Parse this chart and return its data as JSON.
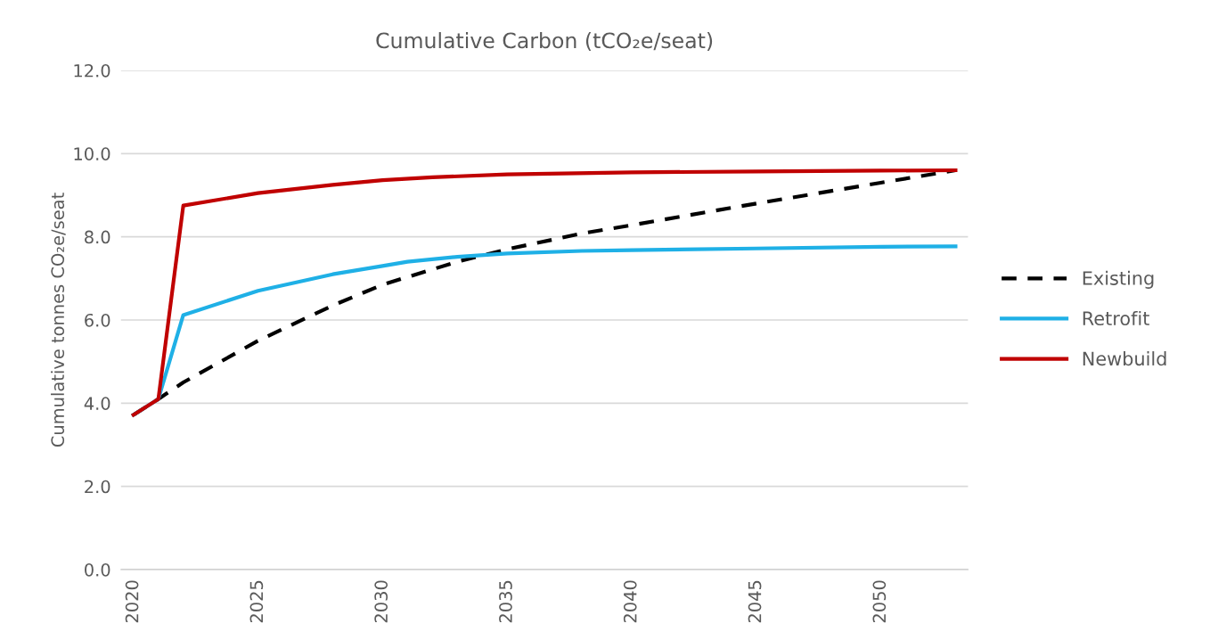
{
  "chart_data": {
    "type": "line",
    "title": "Cumulative Carbon (tCO₂e/seat)",
    "ylabel": "Cumulative tonnes CO₂e/seat",
    "xlim": [
      2019.5,
      2053.5
    ],
    "xticks": [
      2020,
      2025,
      2030,
      2035,
      2040,
      2045,
      2050
    ],
    "ylim": [
      0,
      12
    ],
    "yticks": [
      {
        "value": 0,
        "label": "0.0"
      },
      {
        "value": 2,
        "label": "2.0"
      },
      {
        "value": 4,
        "label": "4.0"
      },
      {
        "value": 6,
        "label": "6.0"
      },
      {
        "value": 8,
        "label": "8.0"
      },
      {
        "value": 10,
        "label": "10.0"
      },
      {
        "value": 12,
        "label": "12.0"
      }
    ],
    "grid": "y",
    "legend": "right",
    "marker": "none",
    "series": [
      {
        "name": "Existing",
        "color": "#000000",
        "line_style": "dashed",
        "x": [
          2020,
          2021,
          2022,
          2025,
          2028,
          2030,
          2033,
          2035,
          2038,
          2040,
          2045,
          2050,
          2053
        ],
        "values": [
          3.72,
          4.1,
          4.5,
          5.5,
          6.35,
          6.85,
          7.4,
          7.7,
          8.08,
          8.28,
          8.8,
          9.3,
          9.6
        ]
      },
      {
        "name": "Retrofit",
        "color": "#1fb0e6",
        "line_style": "solid",
        "x": [
          2020,
          2021,
          2022,
          2025,
          2028,
          2030,
          2031,
          2033,
          2035,
          2038,
          2040,
          2045,
          2050,
          2053
        ],
        "values": [
          3.72,
          4.1,
          6.12,
          6.7,
          7.1,
          7.3,
          7.4,
          7.52,
          7.6,
          7.66,
          7.68,
          7.72,
          7.76,
          7.77
        ]
      },
      {
        "name": "Newbuild",
        "color": "#c00000",
        "line_style": "solid",
        "x": [
          2020,
          2021,
          2022,
          2025,
          2028,
          2030,
          2032,
          2035,
          2040,
          2045,
          2050,
          2053
        ],
        "values": [
          3.72,
          4.1,
          8.75,
          9.05,
          9.25,
          9.36,
          9.43,
          9.5,
          9.55,
          9.57,
          9.59,
          9.6
        ]
      }
    ]
  }
}
